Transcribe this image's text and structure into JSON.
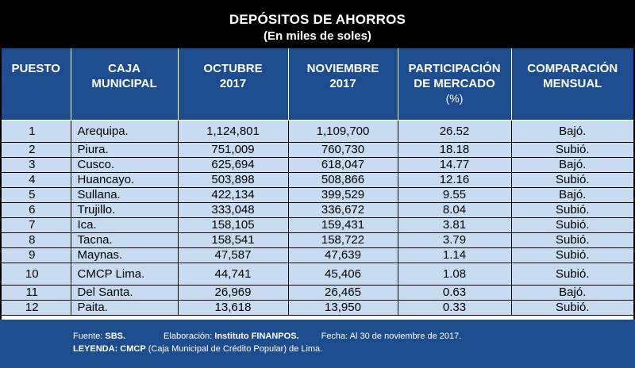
{
  "title": "DEPÓSITOS DE AHORROS",
  "subtitle": "(En miles de soles)",
  "headers": {
    "puesto": "PUESTO",
    "caja_1": "CAJA",
    "caja_2": "MUNICIPAL",
    "oct_1": "OCTUBRE",
    "oct_2": "2017",
    "nov_1": "NOVIEMBRE",
    "nov_2": "2017",
    "part_1": "PARTICIPACIÓN",
    "part_2": "DE MERCADO",
    "part_3": "(%)",
    "comp_1": "COMPARACIÓN",
    "comp_2": "MENSUAL"
  },
  "rows": [
    {
      "puesto": "1",
      "caja": "Arequipa.",
      "octubre": "1,124,801",
      "noviembre": "1,109,700",
      "participacion": "26.52",
      "comparacion": "Bajó."
    },
    {
      "puesto": "2",
      "caja": "Piura.",
      "octubre": "751,009",
      "noviembre": "760,730",
      "participacion": "18.18",
      "comparacion": "Subió."
    },
    {
      "puesto": "3",
      "caja": "Cusco.",
      "octubre": "625,694",
      "noviembre": "618,047",
      "participacion": "14.77",
      "comparacion": "Bajó."
    },
    {
      "puesto": "4",
      "caja": "Huancayo.",
      "octubre": "503,898",
      "noviembre": "508,866",
      "participacion": "12.16",
      "comparacion": "Subió."
    },
    {
      "puesto": "5",
      "caja": "Sullana.",
      "octubre": "422,134",
      "noviembre": "399,529",
      "participacion": "9.55",
      "comparacion": "Bajó."
    },
    {
      "puesto": "6",
      "caja": "Trujillo.",
      "octubre": "333,048",
      "noviembre": "336,672",
      "participacion": "8.04",
      "comparacion": "Subió."
    },
    {
      "puesto": "7",
      "caja": "Ica.",
      "octubre": "158,105",
      "noviembre": "159,431",
      "participacion": "3.81",
      "comparacion": "Subió."
    },
    {
      "puesto": "8",
      "caja": "Tacna.",
      "octubre": "158,541",
      "noviembre": "158,722",
      "participacion": "3.79",
      "comparacion": "Subió."
    },
    {
      "puesto": "9",
      "caja": "Maynas.",
      "octubre": "47,587",
      "noviembre": "47,639",
      "participacion": "1.14",
      "comparacion": "Subió."
    },
    {
      "puesto": "10",
      "caja": "CMCP Lima.",
      "octubre": "44,741",
      "noviembre": "45,406",
      "participacion": "1.08",
      "comparacion": "Subió."
    },
    {
      "puesto": "11",
      "caja": "Del Santa.",
      "octubre": "26,969",
      "noviembre": "26,465",
      "participacion": "0.63",
      "comparacion": "Bajó."
    },
    {
      "puesto": "12",
      "caja": "Paita.",
      "octubre": "13,618",
      "noviembre": "13,950",
      "participacion": "0.33",
      "comparacion": "Subió."
    }
  ],
  "footer": {
    "fuente_label": "Fuente: ",
    "fuente_value": "SBS.",
    "elaboracion_label": "Elaboración: ",
    "elaboracion_value": "Instituto FINANPOS.",
    "fecha": "Fecha: Al 30 de noviembre de 2017.",
    "leyenda_label": "LEYENDA: ",
    "leyenda_abbr": "CMCP",
    "leyenda_text": " (Caja Municipal de Crédito Popular) de Lima."
  },
  "colors": {
    "header_blue": "#1e4d8f",
    "row_light_blue": "#c7dcf0",
    "background": "#000000"
  }
}
